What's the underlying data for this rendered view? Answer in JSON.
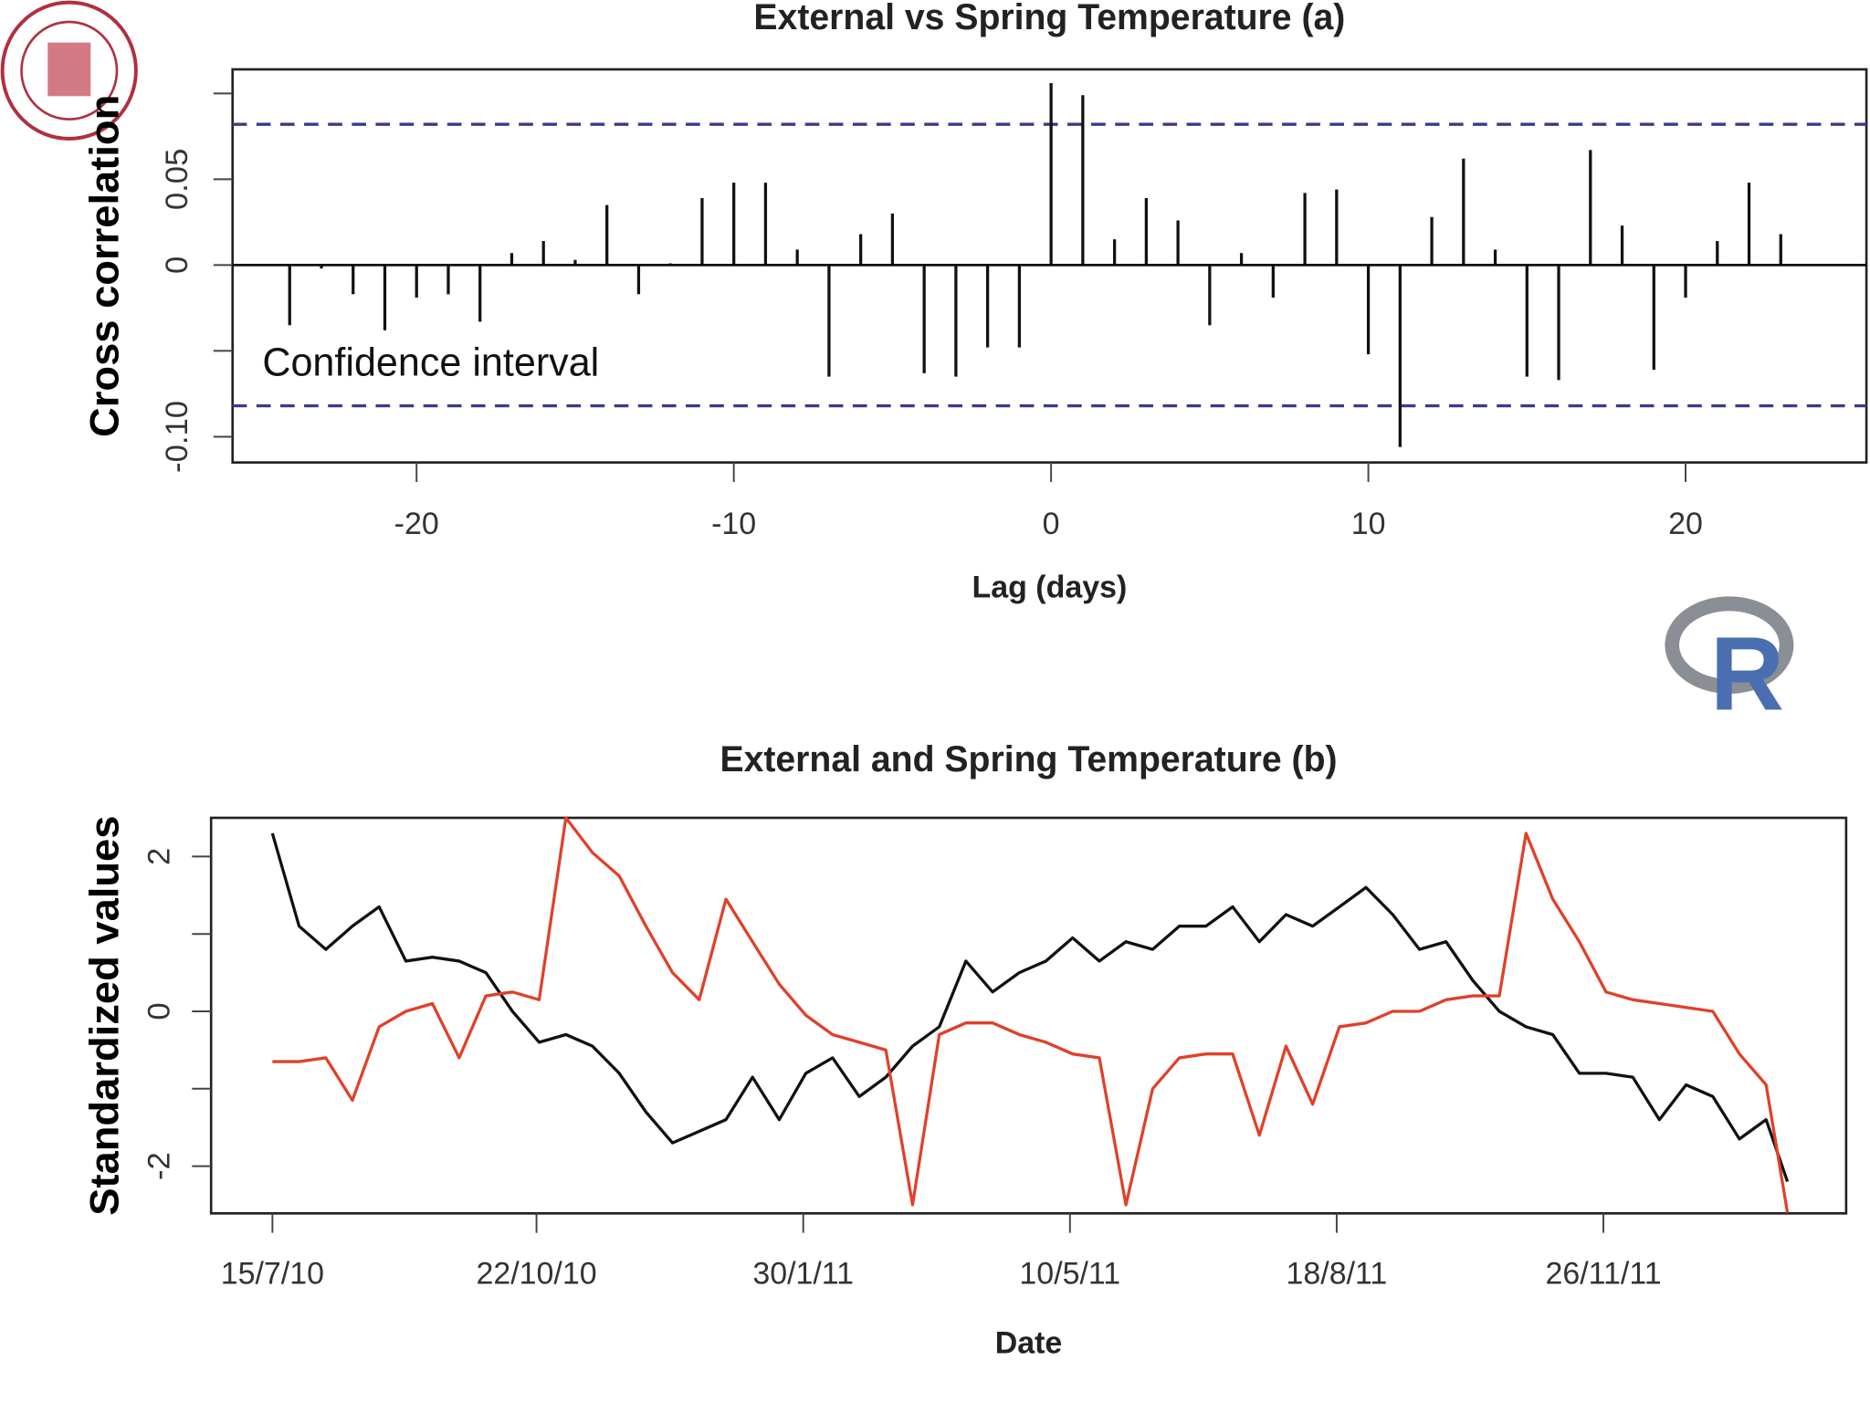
{
  "logo_text": "R",
  "chart_data": [
    {
      "type": "bar",
      "title": "External vs Spring Temperature (a)",
      "xlabel": "Lag (days)",
      "ylabel": "Cross correlation",
      "annotation": "Confidence interval",
      "x": [
        -24,
        -23,
        -22,
        -21,
        -20,
        -19,
        -18,
        -17,
        -16,
        -15,
        -14,
        -13,
        -12,
        -11,
        -10,
        -9,
        -8,
        -7,
        -6,
        -5,
        -4,
        -3,
        -2,
        -1,
        0,
        1,
        2,
        3,
        4,
        5,
        6,
        7,
        8,
        9,
        10,
        11,
        12,
        13,
        14,
        15,
        16,
        17,
        18,
        19,
        20,
        21,
        22,
        23
      ],
      "values": [
        -0.035,
        -0.002,
        -0.017,
        -0.038,
        -0.019,
        -0.017,
        -0.033,
        0.007,
        0.014,
        0.003,
        0.035,
        -0.017,
        0.001,
        0.039,
        0.048,
        0.048,
        0.009,
        -0.065,
        0.018,
        0.03,
        -0.063,
        -0.065,
        -0.048,
        -0.048,
        0.106,
        0.099,
        0.015,
        0.039,
        0.026,
        -0.035,
        0.007,
        -0.019,
        0.042,
        0.044,
        -0.052,
        -0.106,
        0.028,
        0.062,
        0.009,
        -0.065,
        -0.067,
        0.067,
        0.023,
        -0.061,
        -0.019,
        0.014,
        0.048,
        0.018
      ],
      "color": "#111111",
      "hlines": [
        0.082,
        -0.082
      ],
      "hline_color": "#3a3a8a",
      "hline_style": "dashed",
      "xlim": [
        -25.8,
        25.7
      ],
      "ylim": [
        -0.115,
        0.114
      ],
      "xticks": [
        -20,
        -10,
        0,
        10,
        20
      ],
      "yticks": [
        {
          "value": -0.1,
          "label": "-0.10"
        },
        {
          "value": -0.05,
          "label": null
        },
        0,
        0.05,
        {
          "value": 0.1,
          "label": null
        }
      ]
    },
    {
      "type": "line",
      "title": "External and Spring Temperature (b)",
      "xlabel": "Date",
      "ylabel": "Standardized values",
      "x": [
        "2010-07-15",
        "2010-07-25",
        "2010-08-04",
        "2010-08-14",
        "2010-08-24",
        "2010-09-03",
        "2010-09-13",
        "2010-09-23",
        "2010-10-03",
        "2010-10-13",
        "2010-10-23",
        "2010-11-02",
        "2010-11-12",
        "2010-11-22",
        "2010-12-02",
        "2010-12-12",
        "2010-12-22",
        "2011-01-01",
        "2011-01-11",
        "2011-01-21",
        "2011-01-31",
        "2011-02-10",
        "2011-02-20",
        "2011-03-02",
        "2011-03-12",
        "2011-03-22",
        "2011-04-01",
        "2011-04-11",
        "2011-04-21",
        "2011-05-01",
        "2011-05-11",
        "2011-05-21",
        "2011-05-31",
        "2011-06-10",
        "2011-06-20",
        "2011-06-30",
        "2011-07-10",
        "2011-07-20",
        "2011-07-30",
        "2011-08-09",
        "2011-08-19",
        "2011-08-29",
        "2011-09-08",
        "2011-09-18",
        "2011-09-28",
        "2011-10-08",
        "2011-10-18",
        "2011-10-28",
        "2011-11-07",
        "2011-11-17",
        "2011-11-27",
        "2011-12-07",
        "2011-12-17",
        "2011-12-27",
        "2012-01-06",
        "2012-01-16",
        "2012-01-26",
        "2012-02-03"
      ],
      "series": [
        {
          "color": "#111111",
          "values": [
            2.3,
            1.1,
            0.8,
            1.1,
            1.35,
            0.65,
            0.7,
            0.65,
            0.5,
            0.0,
            -0.4,
            -0.3,
            -0.45,
            -0.8,
            -1.3,
            -1.7,
            -1.55,
            -1.4,
            -0.85,
            -1.4,
            -0.8,
            -0.6,
            -1.1,
            -0.85,
            -0.45,
            -0.2,
            0.65,
            0.25,
            0.5,
            0.65,
            0.95,
            0.65,
            0.9,
            0.8,
            1.1,
            1.1,
            1.35,
            0.9,
            1.25,
            1.1,
            1.35,
            1.6,
            1.25,
            0.8,
            0.9,
            0.4,
            0.0,
            -0.2,
            -0.3,
            -0.8,
            -0.8,
            -0.85,
            -1.4,
            -0.95,
            -1.1,
            -1.65,
            -1.4,
            -2.2
          ]
        },
        {
          "color": "#e0402a",
          "values": [
            -0.65,
            -0.65,
            -0.6,
            -1.15,
            -0.2,
            0.0,
            0.1,
            -0.6,
            0.2,
            0.25,
            0.15,
            2.5,
            2.05,
            1.75,
            1.1,
            0.5,
            0.15,
            1.45,
            0.9,
            0.35,
            -0.05,
            -0.3,
            -0.4,
            -0.5,
            -2.5,
            -0.3,
            -0.15,
            -0.15,
            -0.3,
            -0.4,
            -0.55,
            -0.6,
            -2.5,
            -1.0,
            -0.6,
            -0.55,
            -0.55,
            -1.6,
            -0.45,
            -1.2,
            -0.2,
            -0.15,
            0.0,
            0.0,
            0.15,
            0.2,
            0.2,
            2.3,
            1.45,
            0.9,
            0.25,
            0.15,
            0.1,
            0.05,
            0.0,
            -0.55,
            -0.95,
            -2.6
          ]
        }
      ],
      "xlim": [
        "2010-06-22",
        "2012-02-25"
      ],
      "ylim": [
        -2.61,
        2.5
      ],
      "xticks": [
        {
          "value": "2010-07-15",
          "label": "15/7/10"
        },
        {
          "value": "2010-10-22",
          "label": "22/10/10"
        },
        {
          "value": "2011-01-30",
          "label": "30/1/11"
        },
        {
          "value": "2011-05-10",
          "label": "10/5/11"
        },
        {
          "value": "2011-08-18",
          "label": "18/8/11"
        },
        {
          "value": "2011-11-26",
          "label": "26/11/11"
        }
      ],
      "yticks": [
        -2,
        {
          "value": -1,
          "label": null
        },
        0,
        {
          "value": 1,
          "label": null
        },
        2
      ]
    }
  ]
}
